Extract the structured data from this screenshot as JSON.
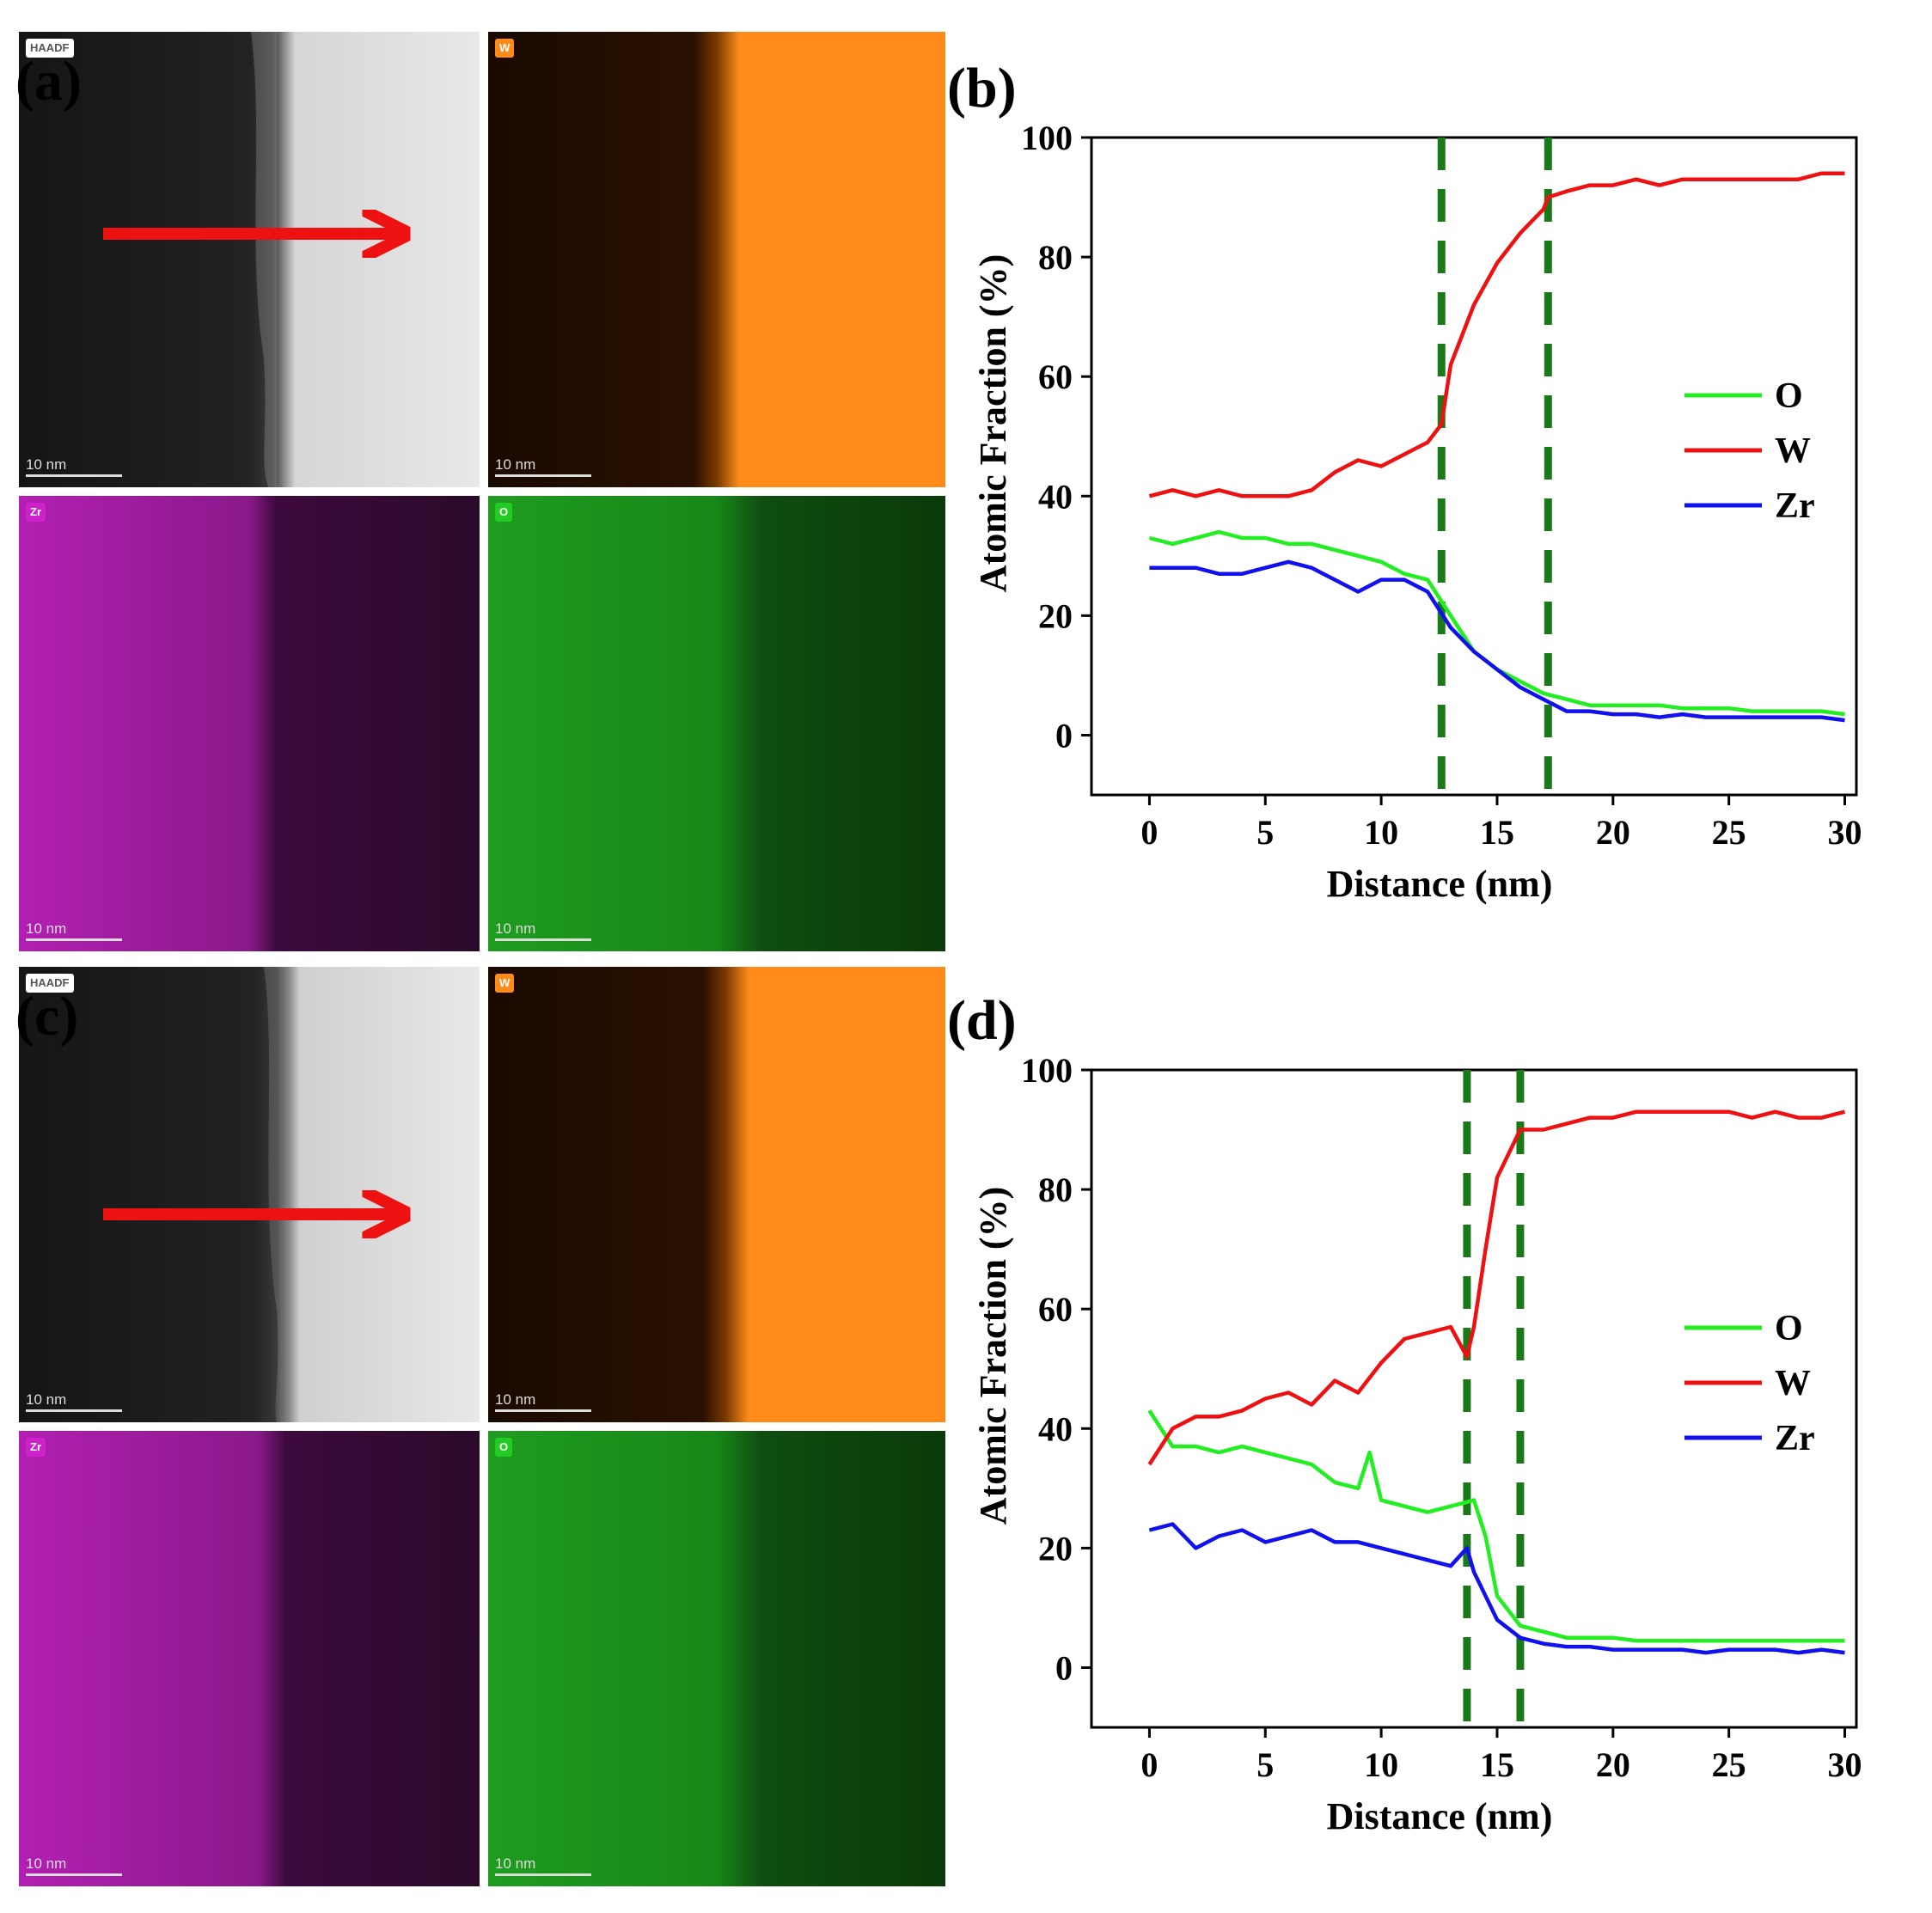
{
  "figure": {
    "panel_labels": {
      "a": "(a)",
      "b": "(b)",
      "c": "(c)",
      "d": "(d)"
    },
    "maps": {
      "haadf_badge": "HAADF",
      "w_badge": "W",
      "zr_badge": "Zr",
      "o_badge": "O",
      "scale_bar_label": "10 nm"
    },
    "colors": {
      "O": "#22ee22",
      "W": "#ee1111",
      "Zr": "#1111ee",
      "boundary": "#1a7a1a",
      "arrow": "#ee1111",
      "w_map": "#ff8c1a",
      "zr_map": "#cc22cc",
      "o_map": "#22cc22"
    }
  },
  "chart_data": [
    {
      "panel": "(b)",
      "type": "line",
      "xlabel": "Distance (nm)",
      "ylabel": "Atomic Fraction (%)",
      "xlim": [
        -2.5,
        30.5
      ],
      "ylim": [
        -10,
        100
      ],
      "xticks": [
        0,
        5,
        10,
        15,
        20,
        25,
        30
      ],
      "yticks": [
        0,
        20,
        40,
        60,
        80,
        100
      ],
      "legend_position": "right",
      "boundary_lines_x": [
        12.6,
        17.2
      ],
      "series": [
        {
          "name": "O",
          "x": [
            0,
            1,
            2,
            3,
            4,
            5,
            6,
            7,
            8,
            9,
            10,
            11,
            12,
            13,
            14,
            15,
            16,
            17,
            18,
            19,
            20,
            21,
            22,
            23,
            24,
            25,
            26,
            27,
            28,
            29,
            30
          ],
          "y": [
            33,
            32,
            33,
            34,
            33,
            33,
            32,
            32,
            31,
            30,
            29,
            27,
            26,
            20,
            14,
            11,
            9,
            7,
            6,
            5,
            5,
            5,
            5,
            4.5,
            4.5,
            4.5,
            4,
            4,
            4,
            4,
            3.5
          ]
        },
        {
          "name": "W",
          "x": [
            0,
            1,
            2,
            3,
            4,
            5,
            6,
            7,
            8,
            9,
            10,
            11,
            12,
            12.6,
            13,
            14,
            15,
            16,
            17,
            17.2,
            18,
            19,
            20,
            21,
            22,
            23,
            24,
            25,
            26,
            27,
            28,
            29,
            30
          ],
          "y": [
            40,
            41,
            40,
            41,
            40,
            40,
            40,
            41,
            44,
            46,
            45,
            47,
            49,
            52,
            62,
            72,
            79,
            84,
            88,
            90,
            91,
            92,
            92,
            93,
            92,
            93,
            93,
            93,
            93,
            93,
            93,
            94,
            94
          ]
        },
        {
          "name": "Zr",
          "x": [
            0,
            1,
            2,
            3,
            4,
            5,
            6,
            7,
            8,
            9,
            10,
            11,
            12,
            13,
            14,
            15,
            16,
            17,
            18,
            19,
            20,
            21,
            22,
            23,
            24,
            25,
            26,
            27,
            28,
            29,
            30
          ],
          "y": [
            28,
            28,
            28,
            27,
            27,
            28,
            29,
            28,
            26,
            24,
            26,
            26,
            24,
            18,
            14,
            11,
            8,
            6,
            4,
            4,
            3.5,
            3.5,
            3,
            3.5,
            3,
            3,
            3,
            3,
            3,
            3,
            2.5
          ]
        }
      ]
    },
    {
      "panel": "(d)",
      "type": "line",
      "xlabel": "Distance (nm)",
      "ylabel": "Atomic Fraction (%)",
      "xlim": [
        -2.5,
        30.5
      ],
      "ylim": [
        -10,
        100
      ],
      "xticks": [
        0,
        5,
        10,
        15,
        20,
        25,
        30
      ],
      "yticks": [
        0,
        20,
        40,
        60,
        80,
        100
      ],
      "legend_position": "right",
      "boundary_lines_x": [
        13.7,
        16
      ],
      "series": [
        {
          "name": "O",
          "x": [
            0,
            1,
            2,
            3,
            4,
            5,
            6,
            7,
            8,
            9,
            9.5,
            10,
            11,
            12,
            13,
            14,
            14.5,
            15,
            16,
            17,
            18,
            19,
            20,
            21,
            22,
            23,
            24,
            25,
            26,
            27,
            28,
            29,
            30
          ],
          "y": [
            43,
            37,
            37,
            36,
            37,
            36,
            35,
            34,
            31,
            30,
            36,
            28,
            27,
            26,
            27,
            28,
            22,
            12,
            7,
            6,
            5,
            5,
            5,
            4.5,
            4.5,
            4.5,
            4.5,
            4.5,
            4.5,
            4.5,
            4.5,
            4.5,
            4.5
          ]
        },
        {
          "name": "W",
          "x": [
            0,
            1,
            2,
            3,
            4,
            5,
            6,
            7,
            8,
            9,
            10,
            11,
            12,
            13,
            13.7,
            14,
            14.5,
            15,
            16,
            17,
            18,
            19,
            20,
            21,
            22,
            23,
            24,
            25,
            26,
            27,
            28,
            29,
            30
          ],
          "y": [
            34,
            40,
            42,
            42,
            43,
            45,
            46,
            44,
            48,
            46,
            51,
            55,
            56,
            57,
            52,
            57,
            70,
            82,
            90,
            90,
            91,
            92,
            92,
            93,
            93,
            93,
            93,
            93,
            92,
            93,
            92,
            92,
            93
          ]
        },
        {
          "name": "Zr",
          "x": [
            0,
            1,
            2,
            3,
            4,
            5,
            6,
            7,
            8,
            9,
            10,
            11,
            12,
            13,
            13.7,
            14,
            15,
            16,
            17,
            18,
            19,
            20,
            21,
            22,
            23,
            24,
            25,
            26,
            27,
            28,
            29,
            30
          ],
          "y": [
            23,
            24,
            20,
            22,
            23,
            21,
            22,
            23,
            21,
            21,
            20,
            19,
            18,
            17,
            20,
            16,
            8,
            5,
            4,
            3.5,
            3.5,
            3,
            3,
            3,
            3,
            2.5,
            3,
            3,
            3,
            2.5,
            3,
            2.5
          ]
        }
      ]
    }
  ]
}
